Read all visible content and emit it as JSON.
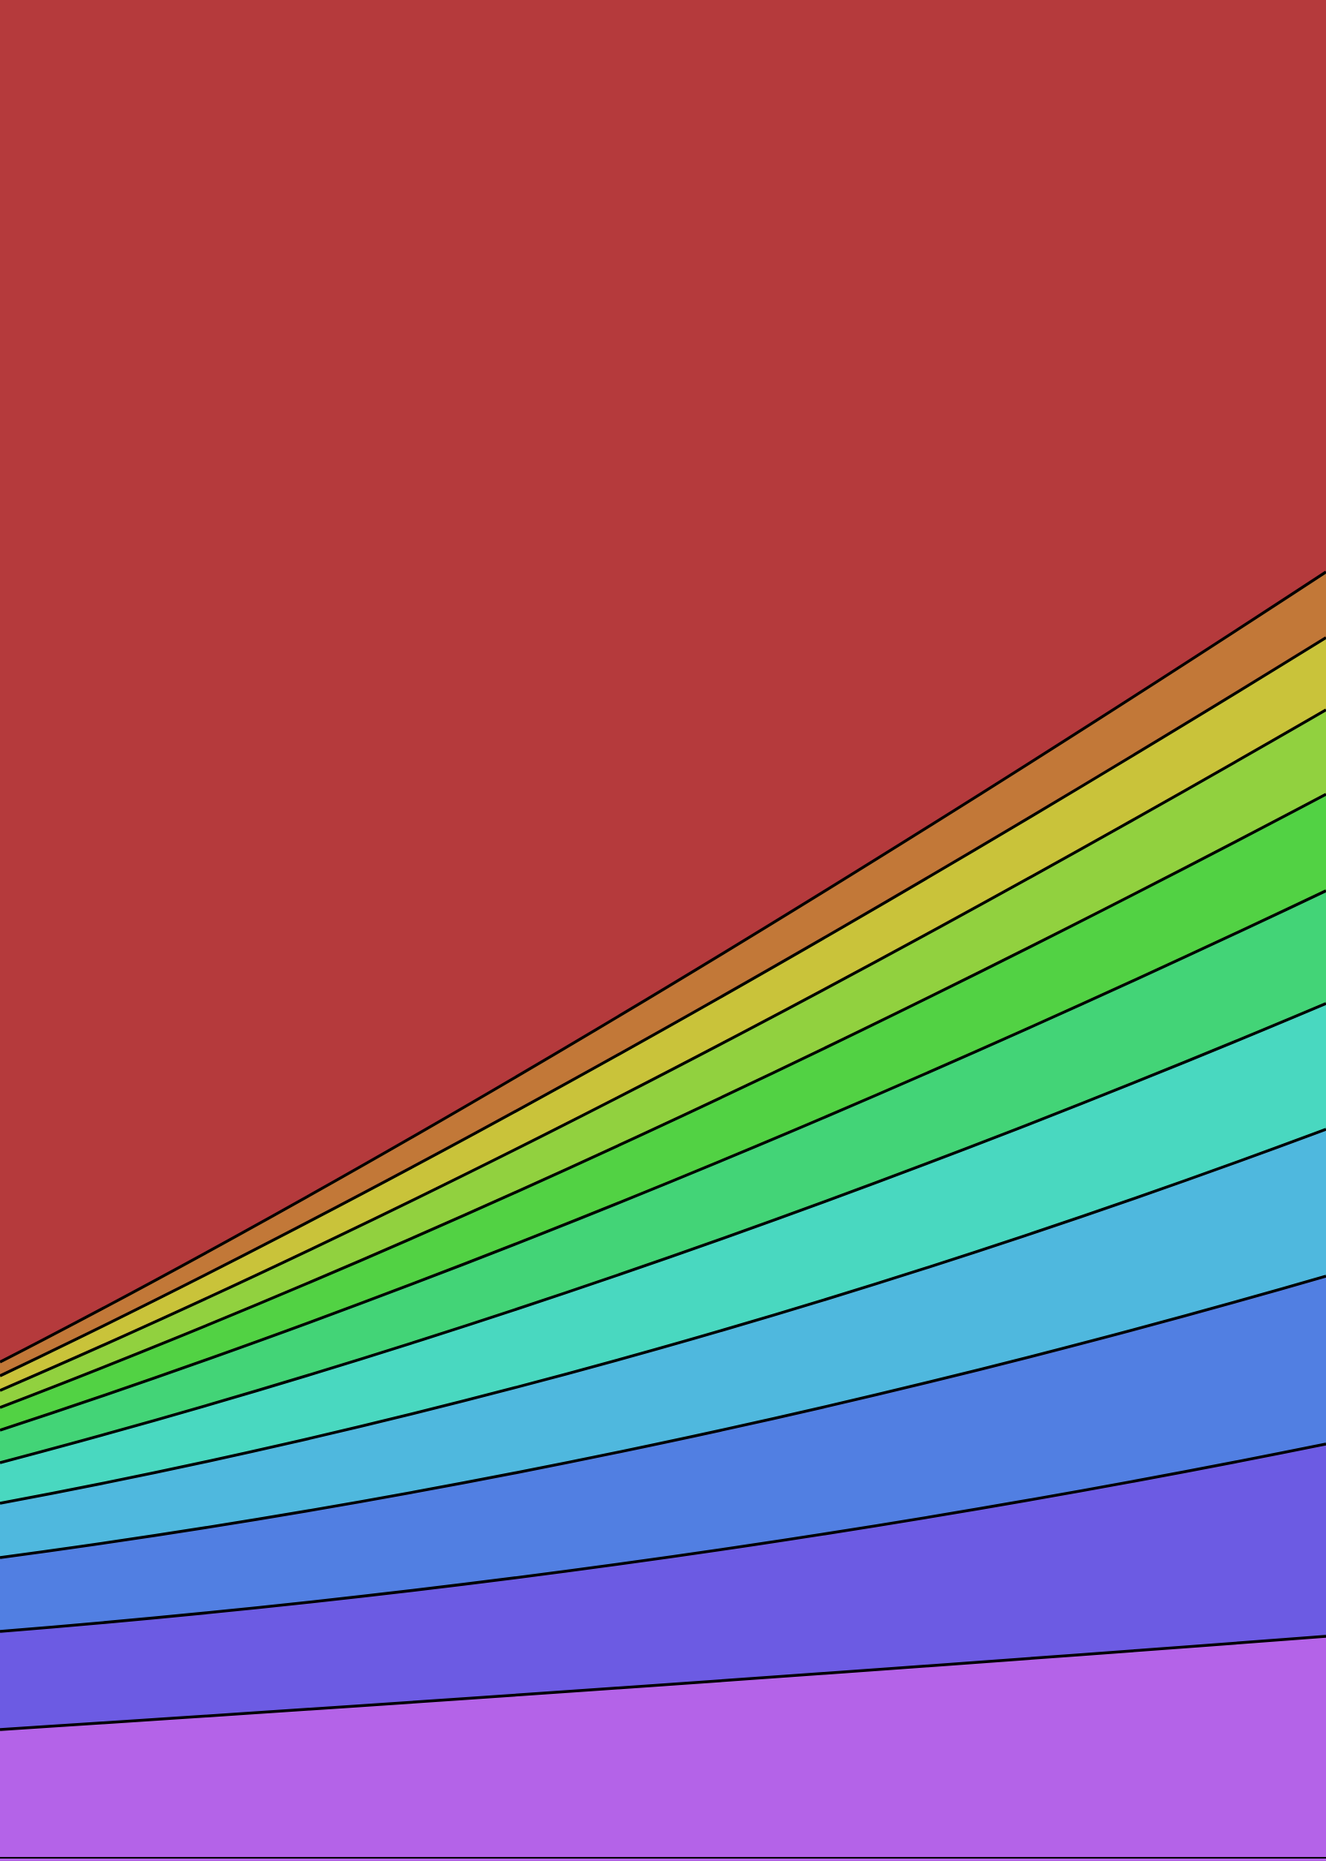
{
  "artwork": {
    "style": "stacked-curved-bands",
    "outline_color": "#000000",
    "top_color": "#b53a3c",
    "bands": [
      {
        "name": "band-orange",
        "color": "#c27838"
      },
      {
        "name": "band-yellow",
        "color": "#c9c33a"
      },
      {
        "name": "band-lime",
        "color": "#91d13f"
      },
      {
        "name": "band-green",
        "color": "#52d244"
      },
      {
        "name": "band-emerald",
        "color": "#43d477"
      },
      {
        "name": "band-turquoise",
        "color": "#49d8c0"
      },
      {
        "name": "band-sky",
        "color": "#4fb8de"
      },
      {
        "name": "band-blue",
        "color": "#517fe2"
      },
      {
        "name": "band-indigo",
        "color": "#6c5be3"
      },
      {
        "name": "band-violet",
        "color": "#b463e8"
      }
    ]
  }
}
